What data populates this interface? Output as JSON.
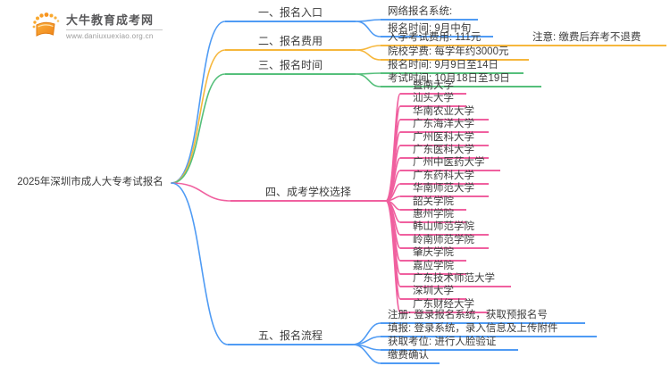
{
  "logo": {
    "title": "大牛教育成考网",
    "url": "www.daniuxuexiao.org.cn"
  },
  "root": {
    "label": "2025年深圳市成人大专考试报名"
  },
  "colors": {
    "blue": "#4f9bf4",
    "orange": "#f6b73c",
    "green": "#55bf7b",
    "pink": "#f0609f",
    "text": "#3d3d3d"
  },
  "branches": [
    {
      "id": "entry",
      "label": "一、报名入口",
      "color": "blue",
      "children": [
        {
          "label": "网络报名系统:"
        },
        {
          "label": "报名时间: 9月中旬"
        }
      ]
    },
    {
      "id": "fee",
      "label": "二、报名费用",
      "color": "orange",
      "children": [
        {
          "label": "入学考试费用: 111元",
          "note": "注意: 缴费后弃考不退费"
        },
        {
          "label": "院校学费: 每学年约3000元"
        }
      ]
    },
    {
      "id": "time",
      "label": "三、报名时间",
      "color": "green",
      "children": [
        {
          "label": "报名时间: 9月9日至14日"
        },
        {
          "label": "考试时间: 10月18日至19日"
        }
      ]
    },
    {
      "id": "schools",
      "label": "四、成考学校选择",
      "color": "pink",
      "children": [
        {
          "label": "暨南大学"
        },
        {
          "label": "汕头大学"
        },
        {
          "label": "华南农业大学"
        },
        {
          "label": "广东海洋大学"
        },
        {
          "label": "广州医科大学"
        },
        {
          "label": "广东医科大学"
        },
        {
          "label": "广州中医药大学"
        },
        {
          "label": "广东药科大学"
        },
        {
          "label": "华南师范大学"
        },
        {
          "label": "韶关学院"
        },
        {
          "label": "惠州学院"
        },
        {
          "label": "韩山师范学院"
        },
        {
          "label": "岭南师范学院"
        },
        {
          "label": "肇庆学院"
        },
        {
          "label": "嘉应学院"
        },
        {
          "label": "广东技术师范大学"
        },
        {
          "label": "深圳大学"
        },
        {
          "label": "广东财经大学"
        }
      ]
    },
    {
      "id": "process",
      "label": "五、报名流程",
      "color": "blue",
      "children": [
        {
          "label": "注册: 登录报名系统，获取预报名号"
        },
        {
          "label": "填报: 登录系统，录入信息及上传附件"
        },
        {
          "label": "获取考位: 进行人脸验证"
        },
        {
          "label": "缴费确认"
        }
      ]
    }
  ]
}
